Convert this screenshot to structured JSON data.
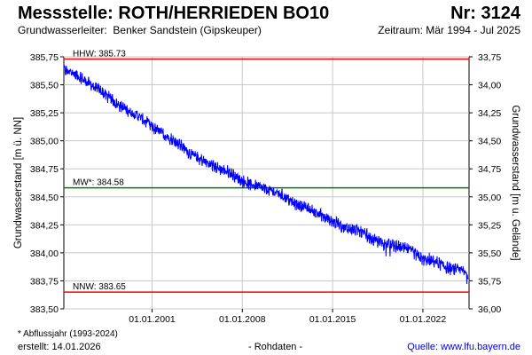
{
  "header": {
    "title": "Messstelle: ROTH/HERRIEDEN BO10",
    "number": "Nr: 3124",
    "aquifer_label": "Grundwasserleiter:",
    "aquifer_value": "Benker Sandstein (Gipskeuper)",
    "period": "Zeitraum: Mär 1994 - Jul 2025"
  },
  "footer": {
    "footnote": "* Abflussjahr (1993-2024)",
    "created": "erstellt:  14.01.2026",
    "rawdata": "- Rohdaten -",
    "source": "Quelle: www.lfu.bayern.de"
  },
  "colors": {
    "series": "#0000ff",
    "hhw_line": "#ff0000",
    "nnw_line": "#ff0000",
    "mw_line": "#008000",
    "grid": "#c8c8c8"
  },
  "chart_data": {
    "type": "line",
    "ylabel_left": "Grundwasserstand [m ü. NN]",
    "ylabel_right": "Grundwasserstand [m u. Gelände]",
    "ylim": [
      383.5,
      385.75
    ],
    "y_ticks_left": [
      "385,75",
      "385,50",
      "385,25",
      "385,00",
      "384,75",
      "384,50",
      "384,25",
      "384,00",
      "383,75",
      "383,50"
    ],
    "y_tick_values_left": [
      385.75,
      385.5,
      385.25,
      385.0,
      384.75,
      384.5,
      384.25,
      384.0,
      383.75,
      383.5
    ],
    "y_ticks_right": [
      "33,75",
      "34,00",
      "34,25",
      "34,50",
      "34,75",
      "35,00",
      "35,25",
      "35,50",
      "35,75",
      "36,00"
    ],
    "y_tick_values_right": [
      33.75,
      34.0,
      34.25,
      34.5,
      34.75,
      35.0,
      35.25,
      35.5,
      35.75,
      36.0
    ],
    "ylim_right": [
      33.75,
      36.0
    ],
    "xlim": [
      "1994-03-01",
      "2025-07-31"
    ],
    "x_ticks": [
      "01.01.2001",
      "01.01.2008",
      "01.01.2015",
      "01.01.2022"
    ],
    "x_tick_dates": [
      "2001-01-01",
      "2008-01-01",
      "2015-01-01",
      "2022-01-01"
    ],
    "grid": true,
    "reference_lines": [
      {
        "label": "HHW: 385.73",
        "value": 385.73
      },
      {
        "label": "MW*: 384.58",
        "value": 384.58
      },
      {
        "label": "NNW: 383.65",
        "value": 383.65
      }
    ],
    "series": [
      {
        "x": [
          "1994-03",
          "1995-01",
          "1996-01",
          "1997-01",
          "1998-01",
          "1999-01",
          "2000-01",
          "2001-01",
          "2002-01",
          "2003-01",
          "2004-01",
          "2005-01",
          "2006-01",
          "2007-01",
          "2008-01",
          "2009-01",
          "2010-01",
          "2011-01",
          "2012-01",
          "2013-01",
          "2014-01",
          "2015-01",
          "2016-01",
          "2017-01",
          "2018-01",
          "2019-01",
          "2020-01",
          "2021-01",
          "2022-01",
          "2023-01",
          "2024-01",
          "2025-01",
          "2025-07"
        ],
        "values": [
          385.63,
          385.6,
          385.52,
          385.45,
          385.35,
          385.28,
          385.22,
          385.12,
          385.05,
          384.98,
          384.88,
          384.82,
          384.76,
          384.72,
          384.64,
          384.6,
          384.56,
          384.52,
          384.44,
          384.4,
          384.34,
          384.28,
          384.22,
          384.2,
          384.12,
          384.08,
          384.06,
          384.02,
          383.94,
          383.92,
          383.86,
          383.84,
          383.8
        ]
      }
    ]
  }
}
